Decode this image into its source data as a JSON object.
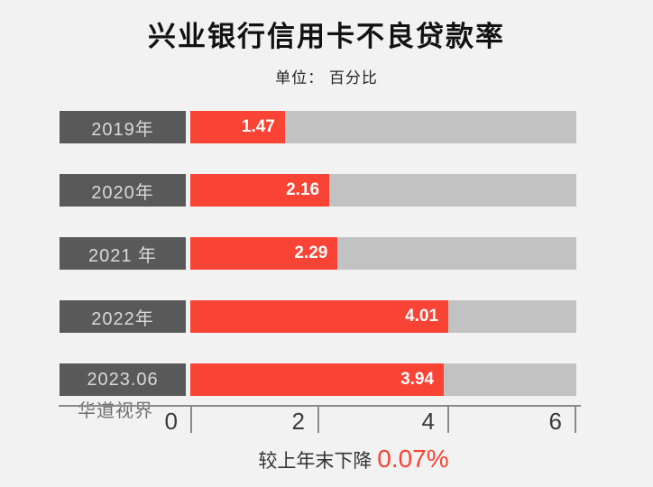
{
  "page": {
    "background": "#f2f2f2"
  },
  "header": {
    "title": "兴业银行信用卡不良贷款率",
    "subtitle": "单位： 百分比"
  },
  "chart_data": {
    "type": "bar",
    "orientation": "horizontal",
    "title": "兴业银行信用卡不良贷款率",
    "unit": "百分比",
    "categories": [
      "2019年",
      "2020年",
      "2021 年",
      "2022年",
      "2023.06"
    ],
    "values": [
      1.47,
      2.16,
      2.29,
      4.01,
      3.94
    ],
    "value_labels": [
      "1.47",
      "2.16",
      "2.29",
      "4.01",
      "3.94"
    ],
    "xlim": [
      0,
      6
    ],
    "x_ticks": [
      0,
      2,
      4,
      6
    ],
    "x_tick_labels": [
      "0",
      "2",
      "4",
      "6"
    ],
    "grid": false,
    "legend": "none",
    "colors": {
      "bar": "#f94334",
      "track": "#c2c2c2",
      "category_box": "#595959",
      "category_text": "#d9d9d9",
      "value_text": "#ffffff",
      "axis": "#8a8a8a"
    }
  },
  "watermark": {
    "text": "华道视界"
  },
  "footer": {
    "note_prefix": "较上年末下降 ",
    "note_value": "0.07%",
    "note_value_color": "#f94334"
  }
}
